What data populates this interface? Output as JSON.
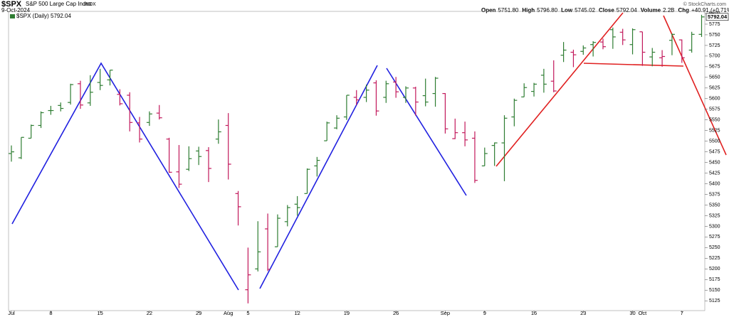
{
  "header": {
    "symbol": "$SPX",
    "name": "S&P 500 Large Cap Index",
    "exchange": "INDX",
    "date": "9-Oct-2024",
    "quote": [
      {
        "label": "Open",
        "value": "5751.80"
      },
      {
        "label": "High",
        "value": "5796.80"
      },
      {
        "label": "Low",
        "value": "5745.02"
      },
      {
        "label": "Close",
        "value": "5792.04"
      },
      {
        "label": "Volume",
        "value": "2.2B"
      },
      {
        "label": "Chg",
        "value": "+40.91 (+0.71%)"
      }
    ],
    "watermark": "© StockCharts.com"
  },
  "chart_data": {
    "type": "ohlc",
    "categories": [
      "Jul",
      null,
      null,
      null,
      "8",
      null,
      null,
      null,
      null,
      "15",
      null,
      null,
      null,
      null,
      "22",
      null,
      null,
      null,
      null,
      "29",
      null,
      null,
      "Aug",
      null,
      "5",
      null,
      null,
      null,
      null,
      "12",
      null,
      null,
      null,
      null,
      "19",
      null,
      null,
      null,
      null,
      "26",
      null,
      null,
      null,
      null,
      "Sep",
      null,
      null,
      null,
      "9",
      null,
      null,
      null,
      null,
      "16",
      null,
      null,
      null,
      null,
      "23",
      null,
      null,
      null,
      null,
      "30",
      "Oct",
      null,
      null,
      null,
      "7",
      null,
      null
    ],
    "series": [
      {
        "name": "$SPX (Daily) 5792.04",
        "open": [
          5471,
          5461,
          5507,
          5537,
          5572,
          5584,
          5591,
          5635,
          5590,
          5638,
          5644,
          5610,
          5608,
          5543,
          5544,
          5566,
          5505,
          5428,
          5434,
          5477,
          5478,
          5505,
          5537,
          5377,
          5151,
          5200,
          5294,
          5252,
          5311,
          5352,
          5377,
          5442,
          5501,
          5531,
          5557,
          5603,
          5603,
          5637,
          5603,
          5639,
          5603,
          5625,
          5607,
          5612,
          5612,
          5506,
          5520,
          5507,
          5442,
          5490,
          5496,
          5557,
          5604,
          5617,
          5655,
          5641,
          5702,
          5709,
          5711,
          5727,
          5733,
          5762,
          5756,
          5727,
          5757,
          5698,
          5696,
          5737,
          5738,
          5714,
          5751
        ],
        "high": [
          5490,
          5509,
          5539,
          5570,
          5583,
          5591,
          5635,
          5642,
          5655,
          5670,
          5667,
          5622,
          5615,
          5557,
          5570,
          5585,
          5508,
          5491,
          5488,
          5487,
          5486,
          5551,
          5566,
          5383,
          5250,
          5312,
          5330,
          5328,
          5350,
          5371,
          5436,
          5463,
          5546,
          5561,
          5608,
          5620,
          5633,
          5643,
          5642,
          5651,
          5629,
          5628,
          5647,
          5651,
          5613,
          5553,
          5546,
          5523,
          5485,
          5497,
          5561,
          5600,
          5636,
          5637,
          5670,
          5690,
          5733,
          5715,
          5725,
          5735,
          5741,
          5767,
          5764,
          5765,
          5757,
          5719,
          5714,
          5753,
          5739,
          5757,
          5797
        ],
        "low": [
          5452,
          5458,
          5507,
          5531,
          5562,
          5570,
          5586,
          5576,
          5583,
          5620,
          5631,
          5584,
          5523,
          5497,
          5536,
          5551,
          5426,
          5390,
          5430,
          5444,
          5404,
          5494,
          5410,
          5302,
          5119,
          5194,
          5195,
          5252,
          5300,
          5325,
          5377,
          5417,
          5501,
          5528,
          5550,
          5585,
          5592,
          5560,
          5590,
          5602,
          5590,
          5560,
          5582,
          5581,
          5518,
          5505,
          5488,
          5402,
          5442,
          5442,
          5406,
          5535,
          5604,
          5605,
          5614,
          5615,
          5686,
          5674,
          5703,
          5699,
          5716,
          5717,
          5726,
          5704,
          5677,
          5676,
          5675,
          5702,
          5684,
          5708,
          5745
        ],
        "close": [
          5475,
          5509,
          5537,
          5567,
          5572,
          5577,
          5633,
          5585,
          5615,
          5631,
          5667,
          5588,
          5544,
          5505,
          5564,
          5555,
          5427,
          5399,
          5459,
          5464,
          5436,
          5522,
          5446,
          5346,
          5186,
          5240,
          5199,
          5319,
          5344,
          5344,
          5434,
          5455,
          5543,
          5554,
          5608,
          5597,
          5620,
          5571,
          5635,
          5616,
          5625,
          5592,
          5592,
          5648,
          5529,
          5520,
          5503,
          5408,
          5471,
          5496,
          5554,
          5596,
          5626,
          5634,
          5634,
          5618,
          5714,
          5703,
          5719,
          5732,
          5722,
          5745,
          5738,
          5762,
          5709,
          5709,
          5699,
          5751,
          5696,
          5751,
          5792
        ]
      }
    ],
    "up_color": "#2e7d32",
    "down_color": "#c2185b",
    "last_value_label": "5792.04",
    "ylim": [
      5102,
      5805
    ],
    "yticks": [
      5125,
      5150,
      5175,
      5200,
      5225,
      5250,
      5275,
      5300,
      5325,
      5350,
      5375,
      5400,
      5425,
      5450,
      5475,
      5500,
      5525,
      5550,
      5575,
      5600,
      5625,
      5650,
      5675,
      5700,
      5725,
      5750,
      5775,
      5800
    ],
    "grid": false
  }
}
